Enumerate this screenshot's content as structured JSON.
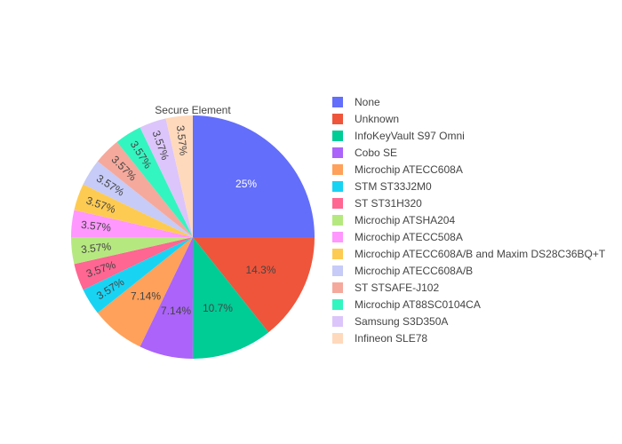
{
  "chart_data": {
    "type": "pie",
    "title": "Secure Element",
    "legend_position": "right",
    "direction": "clockwise",
    "start": "top",
    "slices": [
      {
        "label": "None",
        "value": 25,
        "text": "25%",
        "color": "#636efa"
      },
      {
        "label": "Unknown",
        "value": 14.3,
        "text": "14.3%",
        "color": "#EF553B"
      },
      {
        "label": "InfoKeyVault S97 Omni",
        "value": 10.7,
        "text": "10.7%",
        "color": "#00cc96"
      },
      {
        "label": "Cobo SE",
        "value": 7.14,
        "text": "7.14%",
        "color": "#ab63fa"
      },
      {
        "label": "Microchip ATECC608A",
        "value": 7.14,
        "text": "7.14%",
        "color": "#FFA15A"
      },
      {
        "label": "STM ST33J2M0",
        "value": 3.57,
        "text": "3.57%",
        "color": "#19d3f3"
      },
      {
        "label": "ST ST31H320",
        "value": 3.57,
        "text": "3.57%",
        "color": "#FF6692"
      },
      {
        "label": "Microchip ATSHA204",
        "value": 3.57,
        "text": "3.57%",
        "color": "#B6E880"
      },
      {
        "label": "Microchip ATECC508A",
        "value": 3.57,
        "text": "3.57%",
        "color": "#FF97FF"
      },
      {
        "label": "Microchip ATECC608A/B and Maxim DS28C36BQ+T",
        "value": 3.57,
        "text": "3.57%",
        "color": "#FECB52"
      },
      {
        "label": "Microchip ATECC608A/B",
        "value": 3.57,
        "text": "3.57%",
        "color": "#c6cbf7"
      },
      {
        "label": "ST STSAFE-J102",
        "value": 3.57,
        "text": "3.57%",
        "color": "#f5a99c"
      },
      {
        "label": "Microchip AT88SC0104CA",
        "value": 3.57,
        "text": "3.57%",
        "color": "#33f5c0"
      },
      {
        "label": "Samsung S3D350A",
        "value": 3.57,
        "text": "3.57%",
        "color": "#dcc5fb"
      },
      {
        "label": "Infineon SLE78",
        "value": 3.57,
        "text": "3.57%",
        "color": "#ffd9bc"
      }
    ]
  }
}
